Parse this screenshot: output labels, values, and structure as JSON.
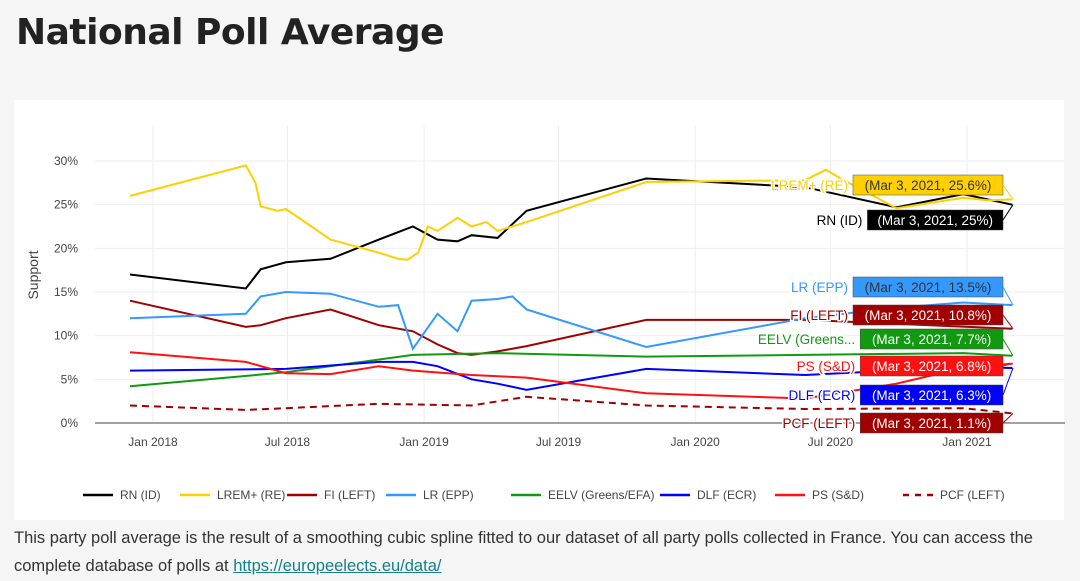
{
  "page": {
    "title": "National Poll Average",
    "description": "This party poll average is the result of a smoothing cubic spline fitted to our dataset of all party polls collected in France. You can access the complete database of polls at ",
    "link": "https://europeelects.eu/data/"
  },
  "chart_data": {
    "type": "line",
    "ylabel": "Support",
    "ylim": [
      0,
      30
    ],
    "yticks": [
      "0%",
      "5%",
      "10%",
      "15%",
      "20%",
      "25%",
      "30%"
    ],
    "xticks": [
      {
        "date": "2018-01-01",
        "label": "Jan 2018"
      },
      {
        "date": "2018-07-01",
        "label": "Jul 2018"
      },
      {
        "date": "2019-01-01",
        "label": "Jan 2019"
      },
      {
        "date": "2019-07-01",
        "label": "Jul 2019"
      },
      {
        "date": "2020-01-01",
        "label": "Jan 2020"
      },
      {
        "date": "2020-07-01",
        "label": "Jul 2020"
      },
      {
        "date": "2021-01-01",
        "label": "Jan 2021"
      }
    ],
    "grid": true,
    "legend": "bottom",
    "series": [
      {
        "name": "RN (ID)",
        "color": "#000000",
        "dash": false,
        "label": "(Mar 3, 2021, 25%)",
        "text_color": "#ffffff",
        "dates": [
          "2017-12-01",
          "2018-05-06",
          "2018-05-26",
          "2018-06-29",
          "2018-08-28",
          "2018-11-01",
          "2018-12-17",
          "2019-01-19",
          "2019-02-15",
          "2019-03-06",
          "2019-04-10",
          "2019-05-19",
          "2019-10-27",
          "2020-05-28",
          "2020-09-28",
          "2020-12-27",
          "2021-03-03"
        ],
        "values": [
          17,
          15.4,
          17.6,
          18.4,
          18.8,
          21,
          22.5,
          21,
          20.8,
          21.5,
          21.2,
          24.3,
          28,
          27,
          24.7,
          26.2,
          25
        ]
      },
      {
        "name": "LREM+ (RE)",
        "color": "#ffd000",
        "dash": false,
        "label": "(Mar 3, 2021, 25.6%)",
        "text_color": "#333333",
        "dates": [
          "2017-12-01",
          "2018-05-06",
          "2018-05-19",
          "2018-05-26",
          "2018-06-18",
          "2018-06-29",
          "2018-08-28",
          "2018-11-01",
          "2018-11-27",
          "2018-12-10",
          "2018-12-24",
          "2019-01-06",
          "2019-01-19",
          "2019-02-15",
          "2019-03-06",
          "2019-03-26",
          "2019-04-10",
          "2019-05-19",
          "2019-10-27",
          "2020-05-28",
          "2020-06-25",
          "2020-07-15",
          "2020-09-28",
          "2020-12-27",
          "2021-01-28",
          "2021-03-03"
        ],
        "values": [
          26,
          29.5,
          27.5,
          24.8,
          24.3,
          24.5,
          21,
          19.5,
          18.8,
          18.7,
          19.5,
          22.5,
          22,
          23.5,
          22.5,
          23,
          22,
          23,
          27.6,
          27.8,
          29,
          28,
          24.6,
          25.8,
          25.5,
          25.6
        ]
      },
      {
        "name": "FI (LEFT)",
        "color": "#a00000",
        "dash": false,
        "label": "(Mar 3, 2021, 10.8%)",
        "text_color": "#ffffff",
        "dates": [
          "2017-12-01",
          "2018-05-06",
          "2018-05-26",
          "2018-06-29",
          "2018-08-28",
          "2018-11-01",
          "2018-12-17",
          "2019-01-19",
          "2019-02-15",
          "2019-03-06",
          "2019-04-10",
          "2019-05-19",
          "2019-10-27",
          "2020-05-28",
          "2021-03-03"
        ],
        "values": [
          14,
          11,
          11.2,
          12,
          13,
          11.2,
          10.5,
          9,
          8,
          7.8,
          8.2,
          8.8,
          11.8,
          11.8,
          10.8
        ]
      },
      {
        "name": "LR (EPP)",
        "color": "#3399ff",
        "dash": false,
        "label": "(Mar 3, 2021, 13.5%)",
        "text_color": "#333333",
        "dates": [
          "2017-12-01",
          "2018-05-06",
          "2018-05-26",
          "2018-06-29",
          "2018-08-28",
          "2018-11-01",
          "2018-11-27",
          "2018-12-17",
          "2019-01-19",
          "2019-02-15",
          "2019-03-06",
          "2019-04-10",
          "2019-04-30",
          "2019-05-19",
          "2019-10-27",
          "2020-05-28",
          "2020-09-28",
          "2020-12-27",
          "2021-03-03"
        ],
        "values": [
          12,
          12.5,
          14.5,
          15,
          14.8,
          13.3,
          13.5,
          8.5,
          12.5,
          10.5,
          14,
          14.2,
          14.5,
          13,
          8.7,
          12,
          13.2,
          13.8,
          13.5
        ]
      },
      {
        "name": "EELV (Greens/EFA)",
        "short": "EELV (Greens...",
        "color": "#119911",
        "dash": false,
        "label": "(Mar 3, 2021, 7.7%)",
        "text_color": "#ffffff",
        "dates": [
          "2017-12-01",
          "2018-06-29",
          "2018-12-17",
          "2019-04-10",
          "2019-10-27",
          "2020-05-28",
          "2020-12-27",
          "2021-03-03"
        ],
        "values": [
          4.2,
          5.8,
          7.8,
          8,
          7.6,
          7.8,
          8,
          7.7
        ]
      },
      {
        "name": "DLF (ECR)",
        "color": "#0000ff",
        "dash": false,
        "label": "(Mar 3, 2021, 6.3%)",
        "text_color": "#ffffff",
        "dates": [
          "2017-12-01",
          "2018-06-29",
          "2018-11-01",
          "2018-12-17",
          "2019-01-19",
          "2019-03-06",
          "2019-04-10",
          "2019-05-19",
          "2019-10-27",
          "2020-05-28",
          "2020-12-27",
          "2021-03-03"
        ],
        "values": [
          6,
          6.2,
          7,
          7,
          6.5,
          5,
          4.5,
          3.8,
          6.2,
          5.5,
          6.4,
          6.3
        ]
      },
      {
        "name": "PS (S&D)",
        "color": "#ff1111",
        "dash": false,
        "label": "(Mar 3, 2021, 6.8%)",
        "text_color": "#ffffff",
        "dates": [
          "2017-12-01",
          "2018-05-06",
          "2018-06-29",
          "2018-08-28",
          "2018-11-01",
          "2018-12-17",
          "2019-03-06",
          "2019-05-19",
          "2019-10-27",
          "2020-05-28",
          "2020-09-28",
          "2020-12-27",
          "2021-03-03"
        ],
        "values": [
          8.1,
          7,
          5.7,
          5.6,
          6.5,
          6,
          5.5,
          5.2,
          3.4,
          2.8,
          4.5,
          6.3,
          6.8
        ]
      },
      {
        "name": "PCF (LEFT)",
        "color": "#a00000",
        "dash": true,
        "label": "(Mar 3, 2021, 1.1%)",
        "text_color": "#ffffff",
        "dates": [
          "2017-12-01",
          "2018-05-06",
          "2018-06-29",
          "2018-11-01",
          "2019-03-06",
          "2019-05-19",
          "2019-10-27",
          "2020-05-28",
          "2020-12-27",
          "2021-03-03"
        ],
        "values": [
          2,
          1.5,
          1.7,
          2.2,
          2,
          3,
          2,
          1.6,
          1.7,
          1.1
        ]
      }
    ]
  }
}
